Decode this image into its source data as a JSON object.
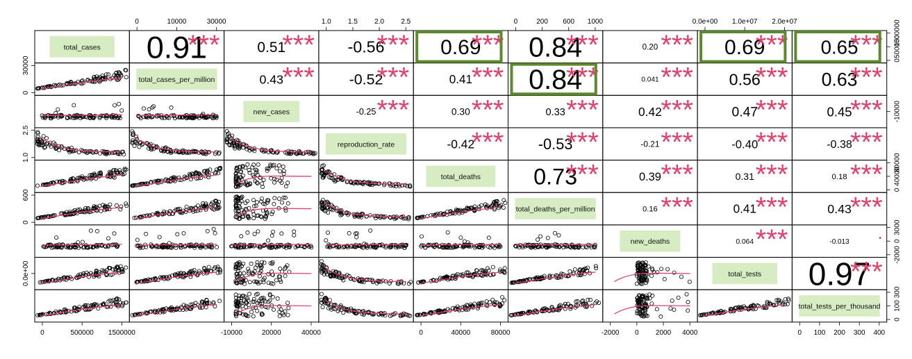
{
  "chart_data": {
    "type": "scatter",
    "variables": [
      "total_cases",
      "total_cases_per_million",
      "new_cases",
      "reproduction_rate",
      "total_deaths",
      "total_deaths_per_million",
      "new_deaths",
      "total_tests",
      "total_tests_per_thousand"
    ],
    "correlations": [
      {
        "row": 1,
        "col": 2,
        "value": "0.91",
        "stars": "***"
      },
      {
        "row": 1,
        "col": 3,
        "value": "0.51",
        "stars": "***"
      },
      {
        "row": 1,
        "col": 4,
        "value": "-0.56",
        "stars": "***"
      },
      {
        "row": 1,
        "col": 5,
        "value": "0.69",
        "stars": "***",
        "highlight": true
      },
      {
        "row": 1,
        "col": 6,
        "value": "0.84",
        "stars": "***"
      },
      {
        "row": 1,
        "col": 7,
        "value": "0.20",
        "stars": "***"
      },
      {
        "row": 1,
        "col": 8,
        "value": "0.69",
        "stars": "***",
        "highlight": true
      },
      {
        "row": 1,
        "col": 9,
        "value": "0.65",
        "stars": "***",
        "highlight": true
      },
      {
        "row": 2,
        "col": 3,
        "value": "0.43",
        "stars": "***"
      },
      {
        "row": 2,
        "col": 4,
        "value": "-0.52",
        "stars": "***"
      },
      {
        "row": 2,
        "col": 5,
        "value": "0.41",
        "stars": "***"
      },
      {
        "row": 2,
        "col": 6,
        "value": "0.84",
        "stars": "***",
        "highlight": true
      },
      {
        "row": 2,
        "col": 7,
        "value": "0.041",
        "stars": "***"
      },
      {
        "row": 2,
        "col": 8,
        "value": "0.56",
        "stars": "***"
      },
      {
        "row": 2,
        "col": 9,
        "value": "0.63",
        "stars": "***"
      },
      {
        "row": 3,
        "col": 4,
        "value": "-0.25",
        "stars": "***"
      },
      {
        "row": 3,
        "col": 5,
        "value": "0.30",
        "stars": "***"
      },
      {
        "row": 3,
        "col": 6,
        "value": "0.33",
        "stars": "***"
      },
      {
        "row": 3,
        "col": 7,
        "value": "0.42",
        "stars": "***"
      },
      {
        "row": 3,
        "col": 8,
        "value": "0.47",
        "stars": "***"
      },
      {
        "row": 3,
        "col": 9,
        "value": "0.45",
        "stars": "***"
      },
      {
        "row": 4,
        "col": 5,
        "value": "-0.42",
        "stars": "***"
      },
      {
        "row": 4,
        "col": 6,
        "value": "-0.53",
        "stars": "***"
      },
      {
        "row": 4,
        "col": 7,
        "value": "-0.21",
        "stars": "***"
      },
      {
        "row": 4,
        "col": 8,
        "value": "-0.40",
        "stars": "***"
      },
      {
        "row": 4,
        "col": 9,
        "value": "-0.38",
        "stars": "***"
      },
      {
        "row": 5,
        "col": 6,
        "value": "0.73",
        "stars": "***"
      },
      {
        "row": 5,
        "col": 7,
        "value": "0.39",
        "stars": "***"
      },
      {
        "row": 5,
        "col": 8,
        "value": "0.31",
        "stars": "***"
      },
      {
        "row": 5,
        "col": 9,
        "value": "0.18",
        "stars": "***"
      },
      {
        "row": 6,
        "col": 7,
        "value": "0.16",
        "stars": "***"
      },
      {
        "row": 6,
        "col": 8,
        "value": "0.41",
        "stars": "***"
      },
      {
        "row": 6,
        "col": 9,
        "value": "0.43",
        "stars": "***"
      },
      {
        "row": 7,
        "col": 8,
        "value": "0.064",
        "stars": "***"
      },
      {
        "row": 7,
        "col": 9,
        "value": "-0.013",
        "stars": "."
      },
      {
        "row": 8,
        "col": 9,
        "value": "0.97",
        "stars": "***"
      }
    ],
    "axes": {
      "top": [
        {
          "col": 2,
          "ticks": [
            "0",
            "10000",
            "30000"
          ]
        },
        {
          "col": 4,
          "ticks": [
            "1.0",
            "1.5",
            "2.0",
            "2.5"
          ]
        },
        {
          "col": 6,
          "ticks": [
            "0",
            "200",
            "600",
            "1000"
          ]
        },
        {
          "col": 8,
          "ticks": [
            "0.0e+00",
            "1.0e+07",
            "2.0e+07"
          ]
        }
      ],
      "bottom": [
        {
          "col": 1,
          "ticks": [
            "0",
            "500000",
            "1500000"
          ]
        },
        {
          "col": 3,
          "ticks": [
            "-10000",
            "20000",
            "40000"
          ]
        },
        {
          "col": 5,
          "ticks": [
            "0",
            "40000",
            "80000"
          ]
        },
        {
          "col": 7,
          "ticks": [
            "-2000",
            "0",
            "2000",
            "4000"
          ]
        },
        {
          "col": 9,
          "ticks": [
            "0",
            "100",
            "200",
            "300",
            "400"
          ]
        }
      ],
      "left": [
        {
          "row": 2,
          "ticks": [
            "0",
            "30000"
          ]
        },
        {
          "row": 4,
          "ticks": [
            "1.0",
            "2.5"
          ]
        },
        {
          "row": 6,
          "ticks": [
            "0",
            "600"
          ]
        },
        {
          "row": 8,
          "ticks": [
            "0.0e+00"
          ]
        }
      ],
      "right": [
        {
          "row": 1,
          "ticks": [
            "0",
            "500000",
            "1500000"
          ]
        },
        {
          "row": 3,
          "ticks": [
            "-10000"
          ]
        },
        {
          "row": 5,
          "ticks": [
            "0",
            "40000",
            "80000"
          ]
        },
        {
          "row": 7,
          "ticks": [
            "-2000",
            "0",
            "3000"
          ]
        },
        {
          "row": 9,
          "ticks": [
            "0",
            "100",
            "300"
          ]
        }
      ]
    },
    "colors": {
      "diag_fill": "#d7ecc2",
      "stars": "#e0406a",
      "highlight": "#5a8a2c",
      "smooth": "#e0406a",
      "points": "#000000"
    }
  }
}
